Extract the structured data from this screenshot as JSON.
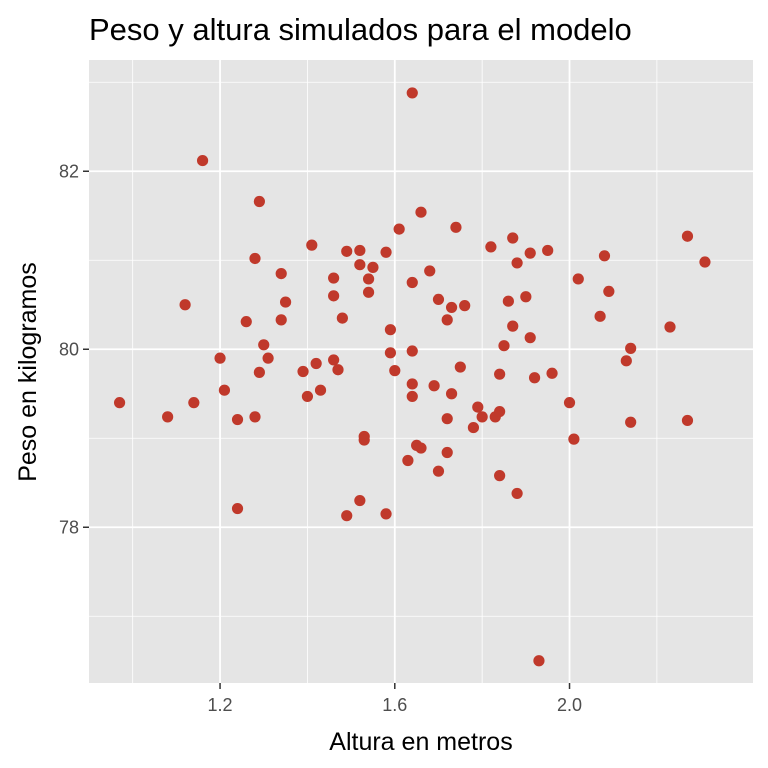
{
  "chart_data": {
    "type": "scatter",
    "title": "Peso y altura simulados para el modelo",
    "xlabel": "Altura en metros",
    "ylabel": "Peso en kilogramos",
    "xlim": [
      0.9,
      2.42
    ],
    "ylim": [
      76.25,
      83.25
    ],
    "x_ticks": [
      1.2,
      1.6,
      2.0
    ],
    "x_tick_labels": [
      "1.2",
      "1.6",
      "2.0"
    ],
    "x_minor_ticks": [
      1.0,
      1.4,
      1.8,
      2.2
    ],
    "y_ticks": [
      78,
      80,
      82
    ],
    "y_tick_labels": [
      "78",
      "80",
      "82"
    ],
    "y_minor_ticks": [
      77,
      79,
      81,
      83
    ],
    "grid": true,
    "point_color": "#c0392b",
    "panel_color": "#e5e5e5",
    "grid_color": "#ffffff",
    "points": [
      {
        "x": 0.97,
        "y": 79.4
      },
      {
        "x": 1.08,
        "y": 79.24
      },
      {
        "x": 1.12,
        "y": 80.5
      },
      {
        "x": 1.14,
        "y": 79.4
      },
      {
        "x": 1.16,
        "y": 82.12
      },
      {
        "x": 1.2,
        "y": 79.9
      },
      {
        "x": 1.21,
        "y": 79.54
      },
      {
        "x": 1.24,
        "y": 79.21
      },
      {
        "x": 1.24,
        "y": 78.21
      },
      {
        "x": 1.26,
        "y": 80.31
      },
      {
        "x": 1.28,
        "y": 79.24
      },
      {
        "x": 1.28,
        "y": 81.02
      },
      {
        "x": 1.29,
        "y": 81.66
      },
      {
        "x": 1.29,
        "y": 79.74
      },
      {
        "x": 1.3,
        "y": 80.05
      },
      {
        "x": 1.31,
        "y": 79.9
      },
      {
        "x": 1.34,
        "y": 80.85
      },
      {
        "x": 1.34,
        "y": 80.33
      },
      {
        "x": 1.35,
        "y": 80.53
      },
      {
        "x": 1.39,
        "y": 79.75
      },
      {
        "x": 1.4,
        "y": 79.47
      },
      {
        "x": 1.41,
        "y": 81.17
      },
      {
        "x": 1.42,
        "y": 79.84
      },
      {
        "x": 1.43,
        "y": 79.54
      },
      {
        "x": 1.46,
        "y": 80.8
      },
      {
        "x": 1.46,
        "y": 80.6
      },
      {
        "x": 1.46,
        "y": 79.88
      },
      {
        "x": 1.47,
        "y": 79.77
      },
      {
        "x": 1.48,
        "y": 80.35
      },
      {
        "x": 1.49,
        "y": 81.1
      },
      {
        "x": 1.49,
        "y": 78.13
      },
      {
        "x": 1.52,
        "y": 81.11
      },
      {
        "x": 1.52,
        "y": 80.95
      },
      {
        "x": 1.52,
        "y": 78.3
      },
      {
        "x": 1.53,
        "y": 79.02
      },
      {
        "x": 1.53,
        "y": 78.98
      },
      {
        "x": 1.54,
        "y": 80.79
      },
      {
        "x": 1.54,
        "y": 80.64
      },
      {
        "x": 1.55,
        "y": 80.92
      },
      {
        "x": 1.58,
        "y": 81.09
      },
      {
        "x": 1.58,
        "y": 78.15
      },
      {
        "x": 1.59,
        "y": 79.96
      },
      {
        "x": 1.59,
        "y": 80.22
      },
      {
        "x": 1.6,
        "y": 79.76
      },
      {
        "x": 1.61,
        "y": 81.35
      },
      {
        "x": 1.63,
        "y": 78.75
      },
      {
        "x": 1.64,
        "y": 82.88
      },
      {
        "x": 1.64,
        "y": 80.75
      },
      {
        "x": 1.64,
        "y": 79.98
      },
      {
        "x": 1.64,
        "y": 79.61
      },
      {
        "x": 1.64,
        "y": 79.47
      },
      {
        "x": 1.65,
        "y": 78.92
      },
      {
        "x": 1.66,
        "y": 81.54
      },
      {
        "x": 1.66,
        "y": 78.89
      },
      {
        "x": 1.68,
        "y": 80.88
      },
      {
        "x": 1.69,
        "y": 79.59
      },
      {
        "x": 1.7,
        "y": 80.56
      },
      {
        "x": 1.7,
        "y": 78.63
      },
      {
        "x": 1.72,
        "y": 80.33
      },
      {
        "x": 1.72,
        "y": 79.22
      },
      {
        "x": 1.72,
        "y": 78.84
      },
      {
        "x": 1.73,
        "y": 80.47
      },
      {
        "x": 1.73,
        "y": 79.5
      },
      {
        "x": 1.74,
        "y": 81.37
      },
      {
        "x": 1.75,
        "y": 79.8
      },
      {
        "x": 1.76,
        "y": 80.49
      },
      {
        "x": 1.78,
        "y": 79.12
      },
      {
        "x": 1.79,
        "y": 79.35
      },
      {
        "x": 1.8,
        "y": 79.24
      },
      {
        "x": 1.82,
        "y": 81.15
      },
      {
        "x": 1.83,
        "y": 79.24
      },
      {
        "x": 1.84,
        "y": 79.72
      },
      {
        "x": 1.84,
        "y": 79.3
      },
      {
        "x": 1.84,
        "y": 78.58
      },
      {
        "x": 1.85,
        "y": 80.04
      },
      {
        "x": 1.86,
        "y": 80.54
      },
      {
        "x": 1.87,
        "y": 81.25
      },
      {
        "x": 1.87,
        "y": 80.26
      },
      {
        "x": 1.88,
        "y": 80.97
      },
      {
        "x": 1.88,
        "y": 78.38
      },
      {
        "x": 1.9,
        "y": 80.59
      },
      {
        "x": 1.91,
        "y": 81.08
      },
      {
        "x": 1.91,
        "y": 80.13
      },
      {
        "x": 1.92,
        "y": 79.68
      },
      {
        "x": 1.93,
        "y": 76.5
      },
      {
        "x": 1.95,
        "y": 81.11
      },
      {
        "x": 1.96,
        "y": 79.73
      },
      {
        "x": 2.0,
        "y": 79.4
      },
      {
        "x": 2.01,
        "y": 78.99
      },
      {
        "x": 2.02,
        "y": 80.79
      },
      {
        "x": 2.07,
        "y": 80.37
      },
      {
        "x": 2.08,
        "y": 81.05
      },
      {
        "x": 2.09,
        "y": 80.65
      },
      {
        "x": 2.13,
        "y": 79.87
      },
      {
        "x": 2.14,
        "y": 80.01
      },
      {
        "x": 2.14,
        "y": 79.18
      },
      {
        "x": 2.23,
        "y": 80.25
      },
      {
        "x": 2.27,
        "y": 81.27
      },
      {
        "x": 2.27,
        "y": 79.2
      },
      {
        "x": 2.31,
        "y": 80.98
      }
    ]
  }
}
